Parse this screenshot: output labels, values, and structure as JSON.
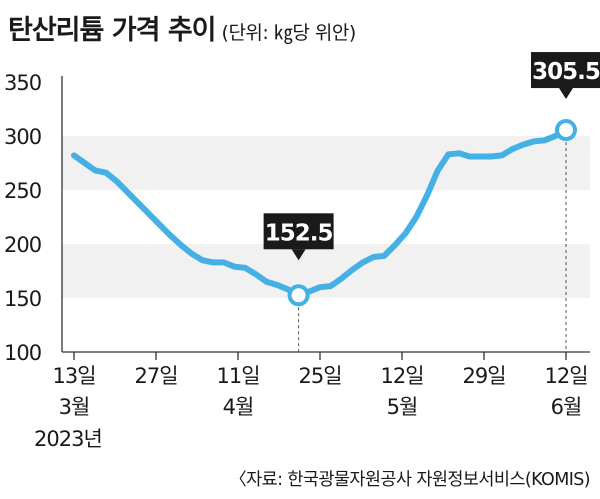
{
  "chart_data": {
    "type": "line",
    "title": "탄산리튬 가격 추이",
    "unit": "(단위: ㎏당 위안)",
    "ylim": [
      100,
      350
    ],
    "yticks": [
      100,
      150,
      200,
      250,
      300,
      350
    ],
    "grid": "alternating horizontal bands",
    "xticks": [
      {
        "day": "13일",
        "month": "3월",
        "year": "2023년"
      },
      {
        "day": "27일",
        "month": "",
        "year": ""
      },
      {
        "day": "11일",
        "month": "4월",
        "year": ""
      },
      {
        "day": "25일",
        "month": "",
        "year": ""
      },
      {
        "day": "12일",
        "month": "5월",
        "year": ""
      },
      {
        "day": "29일",
        "month": "",
        "year": ""
      },
      {
        "day": "12일",
        "month": "6월",
        "year": ""
      }
    ],
    "series": [
      {
        "color": "#45b0e4",
        "values": [
          282,
          275,
          268,
          266,
          258,
          248,
          238,
          228,
          218,
          208,
          199,
          191,
          185,
          183,
          183,
          179,
          178,
          172,
          165,
          162,
          158,
          152.5,
          156,
          160,
          161,
          168,
          176,
          183,
          188,
          189,
          199,
          210,
          225,
          245,
          268,
          283,
          284,
          281,
          281,
          281,
          282,
          288,
          292,
          295,
          296,
          300,
          305.5
        ]
      }
    ],
    "annotations": [
      {
        "label": "152.5",
        "index": 21
      },
      {
        "label": "305.5",
        "index": 46
      }
    ],
    "source": "〈자료: 한국광물자원공사 자원정보서비스(KOMIS)"
  }
}
